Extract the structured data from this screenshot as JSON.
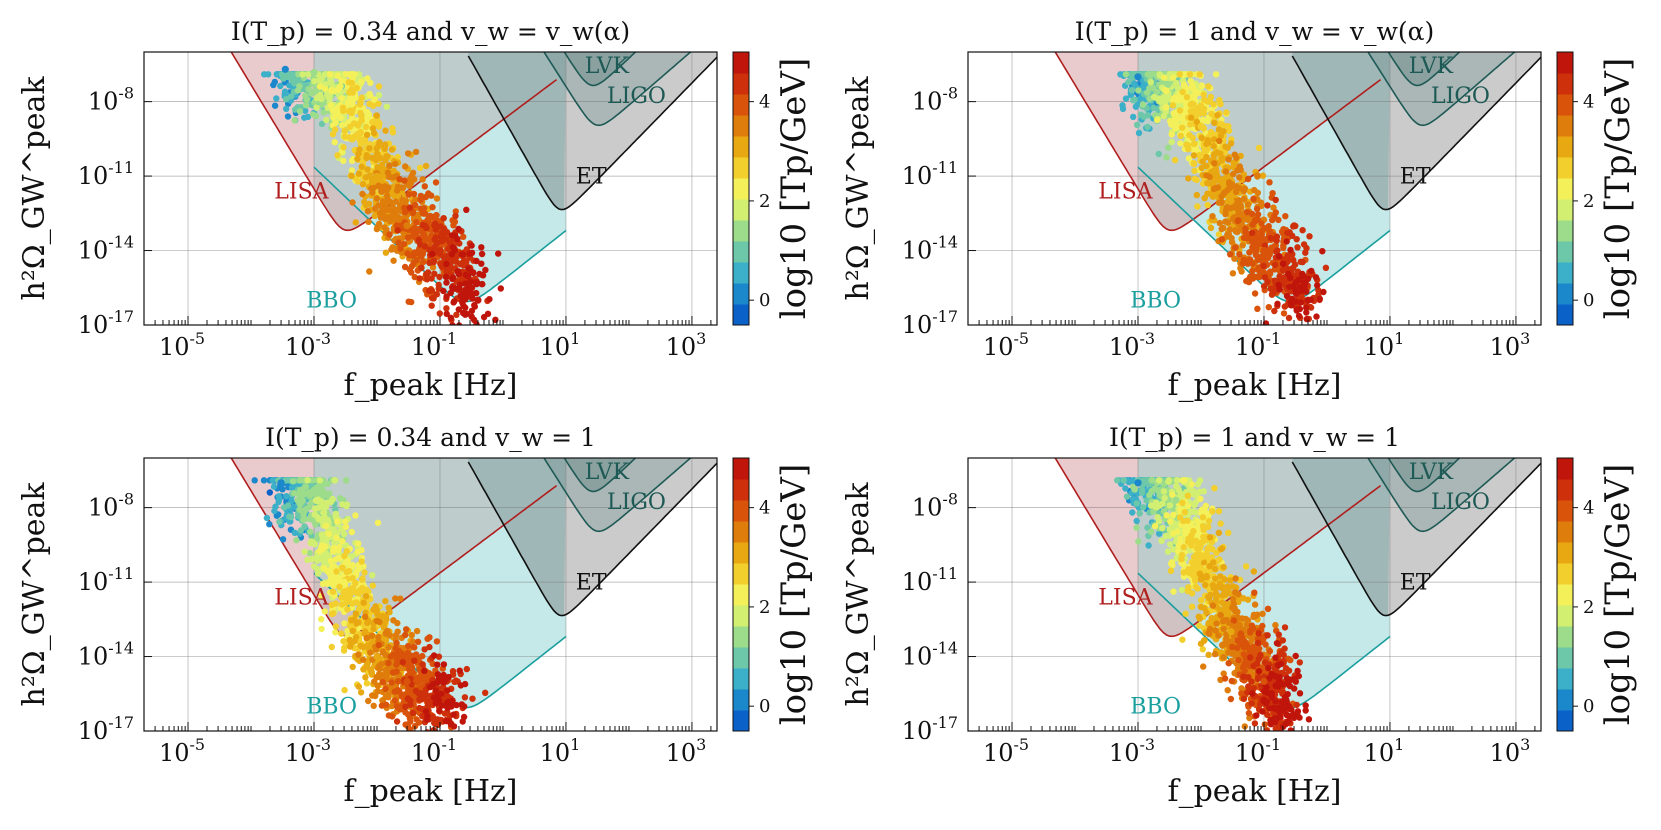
{
  "figure": {
    "colorbar_label": "log10 [Tp/GeV]",
    "colorbar_ticks": [
      0,
      2,
      4
    ],
    "colorbar_range": [
      -0.5,
      5
    ],
    "xlabel": "f_peak [Hz]",
    "ylabel": "h²Ω_GW^peak",
    "detector_labels": [
      "LISA",
      "BBO",
      "ET",
      "LVK",
      "LIGO"
    ],
    "detector_colors": {
      "LISA": "#b01e1e",
      "BBO": "#1a9e9e",
      "ET": "#111111",
      "LVK": "#1e5a55",
      "LIGO": "#1e5a55"
    },
    "shade_colors": {
      "LISA": "#e8c5c8",
      "BBO": "#bfe6e6",
      "ET": "#c8c8c8"
    },
    "colormap": [
      "#0a61c8",
      "#1b88cc",
      "#3bb0c8",
      "#6cc8a8",
      "#9ddc8a",
      "#d2ef72",
      "#f4f05a",
      "#f2cf2c",
      "#e8a812",
      "#df7d0c",
      "#d9540a",
      "#cd300a",
      "#c0150b"
    ]
  },
  "chart_data": [
    {
      "type": "scatter",
      "title": "I(T_p) = 0.34 and v_w = v_w(α)",
      "xlabel": "f_peak [Hz]",
      "ylabel": "h²Ω_GW^peak",
      "x_scale": "log",
      "y_scale": "log",
      "xlim": [
        2e-06,
        2500
      ],
      "ylim": [
        1e-17,
        1e-06
      ],
      "x_ticks": [
        "10^-5",
        "10^-3",
        "10^-1",
        "10^1",
        "10^3"
      ],
      "y_ticks": [
        "10^-8",
        "10^-11",
        "10^-14",
        "10^-17"
      ],
      "colorbar": "log10 [Tp/GeV]",
      "series": [
        {
          "values": [
            {
              "f": 0.00035,
              "omega": 2e-07,
              "log10_Tp": 0.2
            },
            {
              "f": 0.001,
              "omega": 1.5e-07,
              "log10_Tp": 1.2
            },
            {
              "f": 0.004,
              "omega": 8e-09,
              "log10_Tp": 2.2
            },
            {
              "f": 0.01,
              "omega": 1e-11,
              "log10_Tp": 3.0
            },
            {
              "f": 0.03,
              "omega": 1e-13,
              "log10_Tp": 3.6
            },
            {
              "f": 0.1,
              "omega": 1e-14,
              "log10_Tp": 4.2
            },
            {
              "f": 0.4,
              "omega": 1e-16,
              "log10_Tp": 4.8
            }
          ]
        }
      ]
    },
    {
      "type": "scatter",
      "title": "I(T_p) = 1 and v_w = v_w(α)",
      "xlabel": "f_peak [Hz]",
      "ylabel": "h²Ω_GW^peak",
      "x_scale": "log",
      "y_scale": "log",
      "xlim": [
        2e-06,
        2500
      ],
      "ylim": [
        1e-17,
        1e-06
      ],
      "x_ticks": [
        "10^-5",
        "10^-3",
        "10^-1",
        "10^1",
        "10^3"
      ],
      "y_ticks": [
        "10^-8",
        "10^-11",
        "10^-14",
        "10^-17"
      ],
      "colorbar": "log10 [Tp/GeV]",
      "series": [
        {
          "values": [
            {
              "f": 0.001,
              "omega": 1e-07,
              "log10_Tp": 0.3
            },
            {
              "f": 0.003,
              "omega": 5e-08,
              "log10_Tp": 1.5
            },
            {
              "f": 0.01,
              "omega": 1e-09,
              "log10_Tp": 2.5
            },
            {
              "f": 0.03,
              "omega": 1e-12,
              "log10_Tp": 3.2
            },
            {
              "f": 0.1,
              "omega": 1e-14,
              "log10_Tp": 3.9
            },
            {
              "f": 0.5,
              "omega": 1e-16,
              "log10_Tp": 4.7
            }
          ]
        }
      ]
    },
    {
      "type": "scatter",
      "title": "I(T_p) = 0.34 and v_w = 1",
      "xlabel": "f_peak [Hz]",
      "ylabel": "h²Ω_GW^peak",
      "x_scale": "log",
      "y_scale": "log",
      "xlim": [
        2e-06,
        2500
      ],
      "ylim": [
        1e-17,
        1e-06
      ],
      "x_ticks": [
        "10^-5",
        "10^-3",
        "10^-1",
        "10^1",
        "10^3"
      ],
      "y_ticks": [
        "10^-8",
        "10^-11",
        "10^-14",
        "10^-17"
      ],
      "colorbar": "log10 [Tp/GeV]",
      "series": [
        {
          "values": [
            {
              "f": 0.0003,
              "omega": 1e-07,
              "log10_Tp": 0.0
            },
            {
              "f": 0.001,
              "omega": 5e-08,
              "log10_Tp": 1.3
            },
            {
              "f": 0.003,
              "omega": 1e-11,
              "log10_Tp": 2.3
            },
            {
              "f": 0.01,
              "omega": 1e-14,
              "log10_Tp": 3.1
            },
            {
              "f": 0.03,
              "omega": 1e-15,
              "log10_Tp": 3.8
            },
            {
              "f": 0.15,
              "omega": 1e-16,
              "log10_Tp": 4.7
            }
          ]
        }
      ]
    },
    {
      "type": "scatter",
      "title": "I(T_p) = 1 and v_w = 1",
      "xlabel": "f_peak [Hz]",
      "ylabel": "h²Ω_GW^peak",
      "x_scale": "log",
      "y_scale": "log",
      "xlim": [
        2e-06,
        2500
      ],
      "ylim": [
        1e-17,
        1e-06
      ],
      "x_ticks": [
        "10^-5",
        "10^-3",
        "10^-1",
        "10^1",
        "10^3"
      ],
      "y_ticks": [
        "10^-8",
        "10^-11",
        "10^-14",
        "10^-17"
      ],
      "colorbar": "log10 [Tp/GeV]",
      "series": [
        {
          "values": [
            {
              "f": 0.001,
              "omega": 1e-07,
              "log10_Tp": 0.3
            },
            {
              "f": 0.004,
              "omega": 2e-08,
              "log10_Tp": 1.6
            },
            {
              "f": 0.01,
              "omega": 1e-10,
              "log10_Tp": 2.6
            },
            {
              "f": 0.03,
              "omega": 1e-13,
              "log10_Tp": 3.3
            },
            {
              "f": 0.1,
              "omega": 1e-15,
              "log10_Tp": 4.0
            },
            {
              "f": 0.2,
              "omega": 1e-16,
              "log10_Tp": 4.8
            }
          ]
        }
      ]
    }
  ]
}
